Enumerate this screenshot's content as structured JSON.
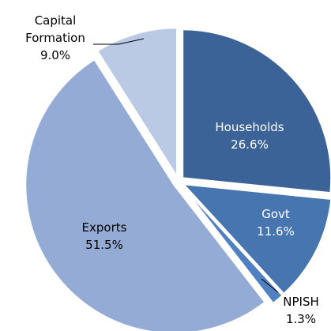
{
  "chart_data": {
    "type": "pie",
    "categories": [
      "Households",
      "Govt",
      "NPISH",
      "Exports",
      "Capital Formation"
    ],
    "values": [
      26.6,
      11.6,
      1.3,
      51.5,
      9.0
    ],
    "value_labels": [
      "26.6%",
      "11.6%",
      "1.3%",
      "51.5%",
      "9.0%"
    ],
    "colors": [
      "#3b6397",
      "#4775b0",
      "#4f80c2",
      "#94abd5",
      "#bac9e4"
    ]
  }
}
